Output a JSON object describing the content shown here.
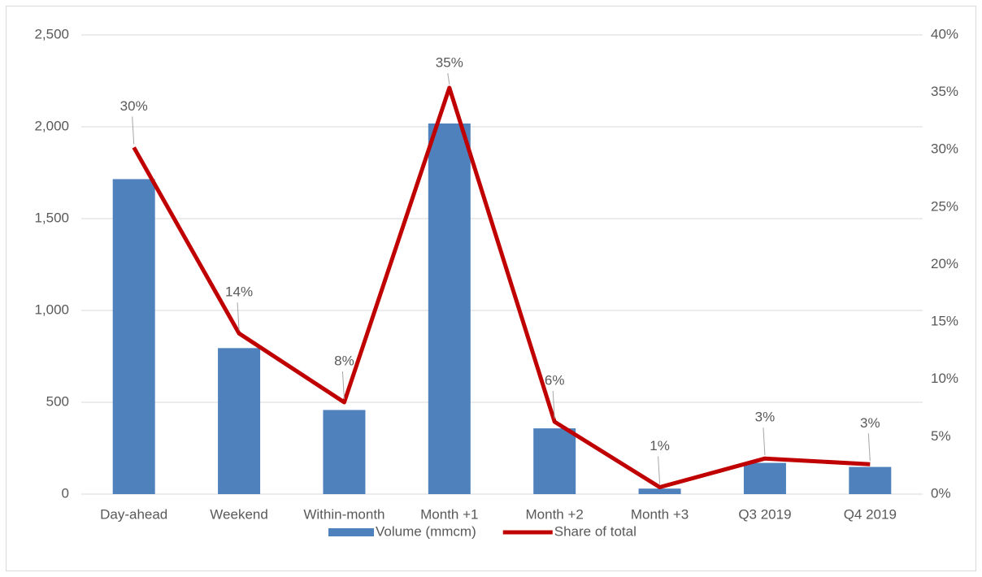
{
  "chart_data": {
    "type": "bar_line",
    "categories": [
      "Day-ahead",
      "Weekend",
      "Within-month",
      "Month +1",
      "Month +2",
      "Month +3",
      "Q3 2019",
      "Q4 2019"
    ],
    "series": [
      {
        "name": "Volume (mmcm)",
        "color": "#4f81bd",
        "type": "bar",
        "values": [
          1715,
          795,
          458,
          2018,
          358,
          30,
          170,
          148
        ]
      },
      {
        "name": "Share of total",
        "color": "#c00000",
        "type": "line",
        "axis": "y2",
        "values": [
          30.2,
          14.0,
          8.0,
          35.4,
          6.3,
          0.6,
          3.1,
          2.6
        ],
        "value_labels": [
          "30%",
          "14%",
          "8%",
          "35%",
          "6%",
          "1%",
          "3%",
          "3%"
        ]
      }
    ],
    "ylim": [
      0,
      2500
    ],
    "yticks": [
      0,
      {
        "value": 500,
        "label": "500"
      },
      {
        "value": 1000,
        "label": "1,000"
      },
      {
        "value": 1500,
        "label": "1,500"
      },
      {
        "value": 2000,
        "label": "2,000"
      },
      {
        "value": 2500,
        "label": "2,500"
      }
    ],
    "y2lim": [
      0,
      40
    ],
    "y2ticks": [
      {
        "value": 0,
        "label": "0%"
      },
      {
        "value": 5,
        "label": "5%"
      },
      {
        "value": 10,
        "label": "10%"
      },
      {
        "value": 15,
        "label": "15%"
      },
      {
        "value": 20,
        "label": "20%"
      },
      {
        "value": 25,
        "label": "25%"
      },
      {
        "value": 30,
        "label": "30%"
      },
      {
        "value": 35,
        "label": "35%"
      },
      {
        "value": 40,
        "label": "40%"
      }
    ],
    "grid": true,
    "legend": "bottom"
  }
}
